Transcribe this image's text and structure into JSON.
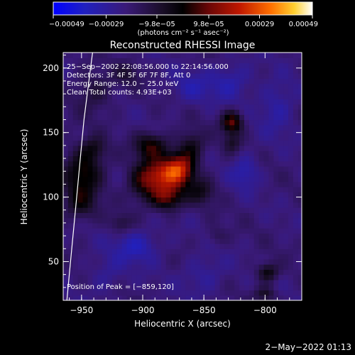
{
  "chart_data": {
    "type": "heatmap",
    "title": "Reconstructed RHESSI Image",
    "xlabel": "Heliocentric X (arcsec)",
    "ylabel": "Heliocentric Y (arcsec)",
    "xlim": [
      -965,
      -770
    ],
    "ylim": [
      20,
      212
    ],
    "x_ticks": [
      -950,
      -900,
      -850,
      -800
    ],
    "x_tick_labels": [
      "−950",
      "−900",
      "−850",
      "−800"
    ],
    "y_ticks": [
      50,
      100,
      150,
      200
    ],
    "y_tick_labels": [
      "50",
      "100",
      "150",
      "200"
    ],
    "colorbar": {
      "range": [
        -0.00049,
        0.00049
      ],
      "ticks": [
        -0.00049,
        -0.00029,
        -9.8e-05,
        9.8e-05,
        0.00029,
        0.00049
      ],
      "tick_labels": [
        "−0.00049",
        "−0.00029",
        "−9.8e−05",
        "9.8e−05",
        "0.00029",
        "0.00049"
      ],
      "unit_label": "(photons cm⁻² s⁻¹ asec⁻²)"
    },
    "info_lines": [
      "25−Sep−2002 22:08:56.000 to 22:14:56.000",
      "Detectors: 3F 4F 5F 6F 7F 8F, Att 0",
      "Energy Range: 12.0 − 25.0 keV",
      "Clean    Total counts: 4.93E+03"
    ],
    "peak_label": "Position of Peak = [−859,120]",
    "peak_position": [
      -859,
      120
    ],
    "limb_curve": [
      [
        -941,
        212
      ],
      [
        -944,
        190
      ],
      [
        -948,
        160
      ],
      [
        -951,
        130
      ],
      [
        -954,
        100
      ],
      [
        -957,
        70
      ],
      [
        -960,
        40
      ],
      [
        -962,
        20
      ]
    ],
    "sources": [
      {
        "x": -870,
        "y": 122,
        "sx": 9,
        "sy": 9,
        "amp": 0.0004
      },
      {
        "x": -887,
        "y": 117,
        "sx": 11,
        "sy": 9,
        "amp": 0.0003
      },
      {
        "x": -893,
        "y": 140,
        "sx": 9,
        "sy": 7,
        "amp": 0.00024
      },
      {
        "x": -880,
        "y": 100,
        "sx": 9,
        "sy": 7,
        "amp": 0.00028
      },
      {
        "x": -860,
        "y": 140,
        "sx": 7,
        "sy": 8,
        "amp": 0.00016
      },
      {
        "x": -852,
        "y": 105,
        "sx": 8,
        "sy": 7,
        "amp": 0.00015
      },
      {
        "x": -900,
        "y": 110,
        "sx": 9,
        "sy": 10,
        "amp": 0.00016
      },
      {
        "x": -827,
        "y": 158,
        "sx": 6,
        "sy": 6,
        "amp": 0.0003
      },
      {
        "x": -827,
        "y": 142,
        "sx": 5,
        "sy": 5,
        "amp": 0.00012
      },
      {
        "x": -948,
        "y": 120,
        "sx": 11,
        "sy": 13,
        "amp": 0.00024
      },
      {
        "x": -952,
        "y": 95,
        "sx": 9,
        "sy": 9,
        "amp": 0.00015
      },
      {
        "x": -940,
        "y": 138,
        "sx": 7,
        "sy": 6,
        "amp": 0.00012
      },
      {
        "x": -940,
        "y": 182,
        "sx": 11,
        "sy": 11,
        "amp": 0.00011
      },
      {
        "x": -798,
        "y": 42,
        "sx": 6,
        "sy": 5,
        "amp": 0.0002
      },
      {
        "x": -800,
        "y": 25,
        "sx": 6,
        "sy": 4,
        "amp": 0.00014
      },
      {
        "x": -912,
        "y": 196,
        "sx": 7,
        "sy": 6,
        "amp": 0.0001
      },
      {
        "x": -918,
        "y": 80,
        "sx": 6,
        "sy": 5,
        "amp": 0.0001
      },
      {
        "x": -840,
        "y": 70,
        "sx": 6,
        "sy": 5,
        "amp": 7e-05
      },
      {
        "x": -816,
        "y": 120,
        "sx": 8,
        "sy": 9,
        "amp": -0.00012
      },
      {
        "x": -905,
        "y": 62,
        "sx": 13,
        "sy": 9,
        "amp": -0.00013
      },
      {
        "x": -828,
        "y": 190,
        "sx": 12,
        "sy": 10,
        "amp": -0.00011
      },
      {
        "x": -860,
        "y": 185,
        "sx": 12,
        "sy": 9,
        "amp": -9e-05
      },
      {
        "x": -790,
        "y": 170,
        "sx": 10,
        "sy": 14,
        "amp": -0.0001
      },
      {
        "x": -850,
        "y": 40,
        "sx": 12,
        "sy": 10,
        "amp": -8e-05
      },
      {
        "x": -930,
        "y": 40,
        "sx": 10,
        "sy": 10,
        "amp": -7e-05
      }
    ]
  },
  "footer": {
    "timestamp": "2−May−2022 01:13"
  }
}
